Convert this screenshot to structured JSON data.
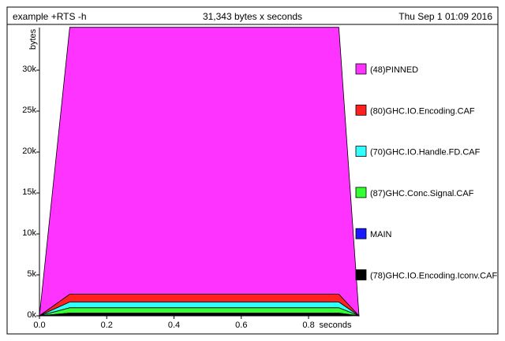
{
  "header": {
    "program": "example +RTS -h",
    "total": "31,343 bytes x seconds",
    "date": "Thu Sep  1 01:09 2016"
  },
  "chart_data": {
    "type": "area",
    "stacked": true,
    "xlabel": "seconds",
    "ylabel": "bytes",
    "xlim": [
      0,
      0.95
    ],
    "ylim": [
      0,
      35200
    ],
    "x_ticks": [
      0.0,
      0.2,
      0.4,
      0.6,
      0.8
    ],
    "x_tick_labels": [
      "0.0",
      "0.2",
      "0.4",
      "0.6",
      "0.8"
    ],
    "y_ticks": [
      0,
      5000,
      10000,
      15000,
      20000,
      25000,
      30000
    ],
    "y_tick_labels": [
      "0k",
      "5k",
      "10k",
      "15k",
      "20k",
      "25k",
      "30k"
    ],
    "x": [
      0.0,
      0.09,
      0.89,
      0.95
    ],
    "series": [
      {
        "name": "(78)GHC.IO.Encoding.Iconv.CAF",
        "color": "#000000",
        "values": [
          0,
          250,
          250,
          0
        ]
      },
      {
        "name": "MAIN",
        "color": "#1a1aff",
        "values": [
          0,
          80,
          80,
          0
        ]
      },
      {
        "name": "(87)GHC.Conc.Signal.CAF",
        "color": "#33ff33",
        "values": [
          0,
          650,
          650,
          0
        ]
      },
      {
        "name": "(70)GHC.IO.Handle.FD.CAF",
        "color": "#33ffff",
        "values": [
          0,
          700,
          700,
          0
        ]
      },
      {
        "name": "(80)GHC.IO.Encoding.CAF",
        "color": "#ff2020",
        "values": [
          0,
          950,
          950,
          0
        ]
      },
      {
        "name": "(48)PINNED",
        "color": "#ff33ff",
        "values": [
          0,
          32600,
          32600,
          0
        ]
      }
    ],
    "legend": [
      {
        "name": "(48)PINNED",
        "color": "#ff33ff"
      },
      {
        "name": "(80)GHC.IO.Encoding.CAF",
        "color": "#ff2020"
      },
      {
        "name": "(70)GHC.IO.Handle.FD.CAF",
        "color": "#33ffff"
      },
      {
        "name": "(87)GHC.Conc.Signal.CAF",
        "color": "#33ff33"
      },
      {
        "name": "MAIN",
        "color": "#1a1aff"
      },
      {
        "name": "(78)GHC.IO.Encoding.Iconv.CAF",
        "color": "#000000"
      }
    ],
    "legend_position": "right"
  }
}
